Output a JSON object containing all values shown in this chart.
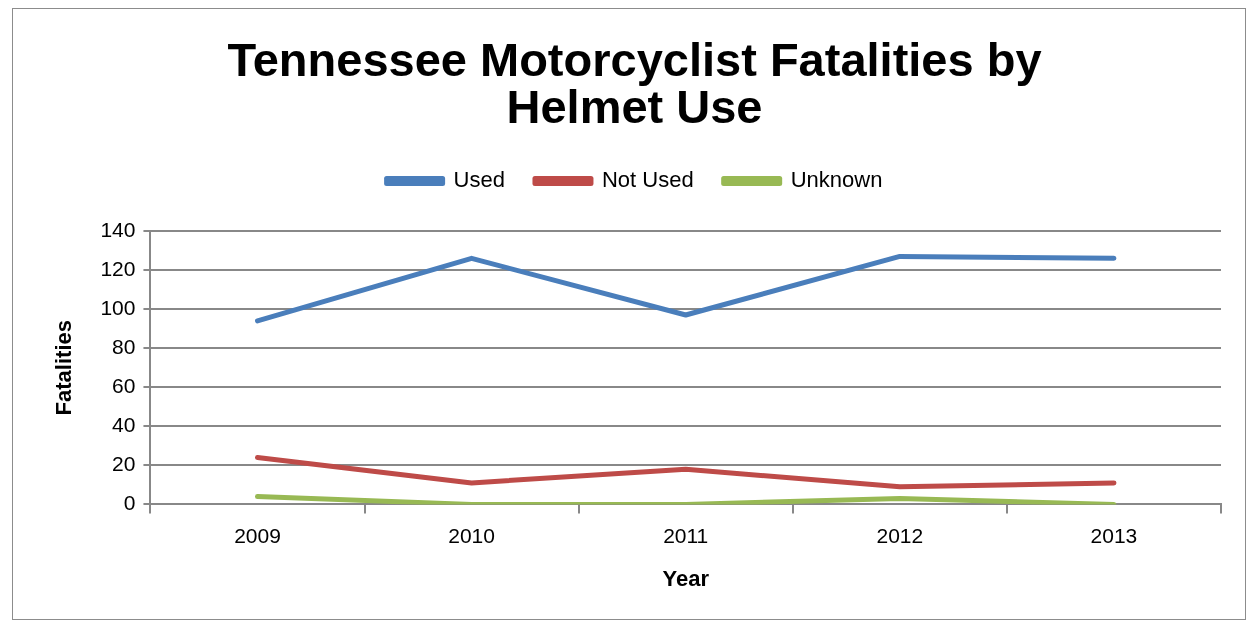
{
  "chart_data": {
    "type": "line",
    "title": "Tennessee Motorcyclist Fatalities by Helmet Use",
    "xlabel": "Year",
    "ylabel": "Fatalities",
    "categories": [
      "2009",
      "2010",
      "2011",
      "2012",
      "2013"
    ],
    "series": [
      {
        "name": "Used",
        "color": "#4a7ebb",
        "values": [
          94,
          126,
          97,
          127,
          126
        ]
      },
      {
        "name": "Not Used",
        "color": "#be4b48",
        "values": [
          24,
          11,
          18,
          9,
          11
        ]
      },
      {
        "name": "Unknown",
        "color": "#98b954",
        "values": [
          4,
          0,
          0,
          3,
          0
        ]
      }
    ],
    "ylim": [
      0,
      140
    ],
    "yticks": [
      0,
      20,
      40,
      60,
      80,
      100,
      120,
      140
    ],
    "grid": "y",
    "legend": "top",
    "marker": "none",
    "line_style": "solid"
  }
}
